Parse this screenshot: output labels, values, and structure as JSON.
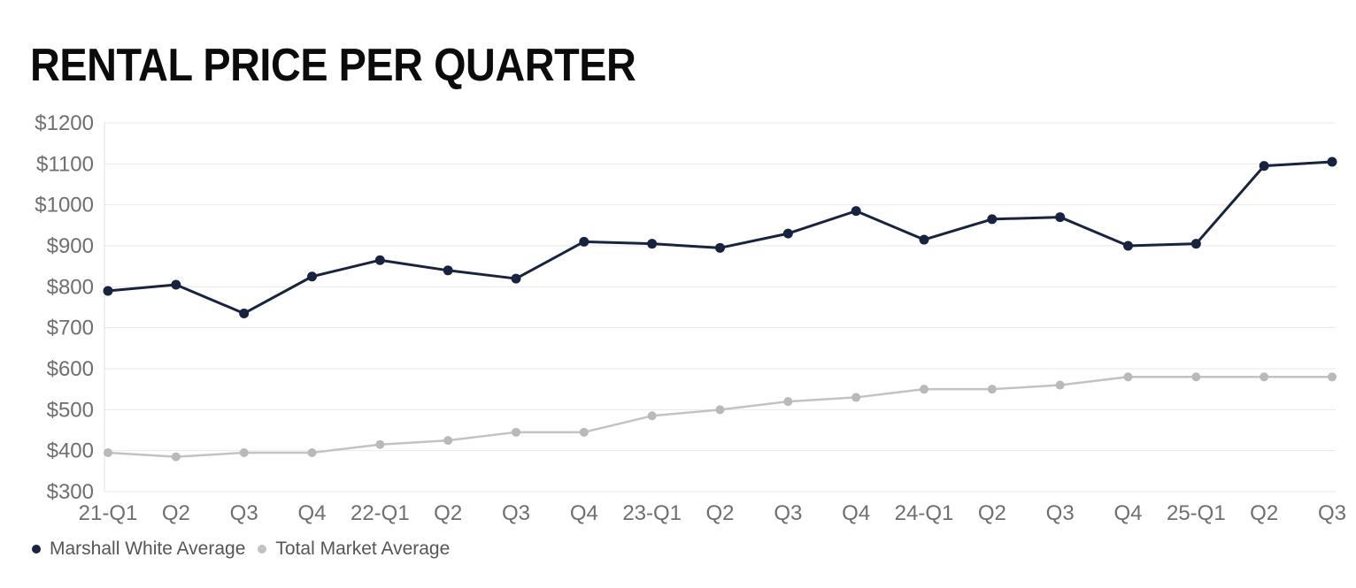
{
  "title": "RENTAL PRICE PER QUARTER",
  "chart_data": {
    "type": "line",
    "title": "RENTAL PRICE PER QUARTER",
    "categories": [
      "21-Q1",
      "Q2",
      "Q3",
      "Q4",
      "22-Q1",
      "Q2",
      "Q3",
      "Q4",
      "23-Q1",
      "Q2",
      "Q3",
      "Q4",
      "24-Q1",
      "Q2",
      "Q3",
      "Q4",
      "25-Q1",
      "Q2",
      "Q3"
    ],
    "series": [
      {
        "name": "Marshall White Average",
        "color": "#18243f",
        "marker_color": "#18243f",
        "line_width": 3,
        "marker_radius": 5.5,
        "values": [
          790,
          805,
          735,
          825,
          865,
          840,
          820,
          910,
          905,
          895,
          930,
          985,
          915,
          965,
          970,
          900,
          905,
          1095,
          1105
        ]
      },
      {
        "name": "Total Market Average",
        "color": "#c3c3c3",
        "marker_color": "#b9b9b9",
        "line_width": 2.5,
        "marker_radius": 5,
        "values": [
          395,
          385,
          395,
          395,
          415,
          425,
          445,
          445,
          485,
          500,
          520,
          530,
          550,
          550,
          560,
          580,
          580,
          580,
          580
        ]
      }
    ],
    "ylim": [
      300,
      1200
    ],
    "ytick_step": 100,
    "ytick_prefix": "$",
    "ytick_labels": [
      "$300",
      "$400",
      "$500",
      "$600",
      "$700",
      "$800",
      "$900",
      "$1000",
      "$1100",
      "$1200"
    ],
    "grid": true,
    "legend_position": "bottom-left",
    "grid_color": "#e9e9e9",
    "axis_line_color": "#e0e0e0",
    "tick_label_color": "#6f6f6f",
    "background": "#ffffff"
  }
}
